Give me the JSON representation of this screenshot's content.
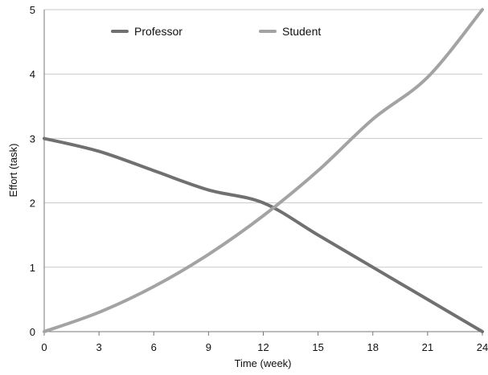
{
  "chart_data": {
    "type": "line",
    "title": "",
    "xlabel": "Time (week)",
    "ylabel": "Effort (task)",
    "xlim": [
      0,
      24
    ],
    "ylim": [
      0,
      5
    ],
    "xticks": [
      0,
      3,
      6,
      9,
      12,
      15,
      18,
      21,
      24
    ],
    "yticks": [
      0,
      1,
      2,
      3,
      4,
      5
    ],
    "grid": "horizontal",
    "legend_position": "top",
    "x": [
      0,
      3,
      6,
      9,
      12,
      15,
      18,
      21,
      24
    ],
    "series": [
      {
        "name": "Professor",
        "color": "#707070",
        "values": [
          3.0,
          2.8,
          2.5,
          2.2,
          2.0,
          1.5,
          1.0,
          0.5,
          0.0
        ]
      },
      {
        "name": "Student",
        "color": "#a3a3a3",
        "values": [
          0.0,
          0.3,
          0.7,
          1.2,
          1.8,
          2.5,
          3.3,
          3.95,
          5.0
        ]
      }
    ]
  }
}
